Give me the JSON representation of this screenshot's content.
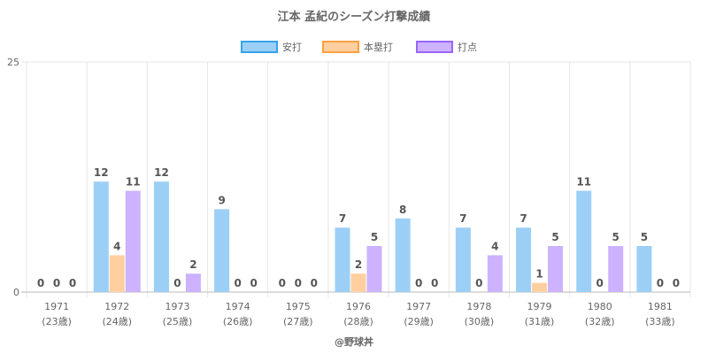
{
  "chart_data": {
    "type": "bar",
    "title": "江本 孟紀のシーズン打撃成績",
    "categories": [
      "1971",
      "1972",
      "1973",
      "1974",
      "1975",
      "1976",
      "1977",
      "1978",
      "1979",
      "1980",
      "1981"
    ],
    "sublabels": [
      "(23歳)",
      "(24歳)",
      "(25歳)",
      "(26歳)",
      "(27歳)",
      "(28歳)",
      "(29歳)",
      "(30歳)",
      "(31歳)",
      "(32歳)",
      "(33歳)"
    ],
    "series": [
      {
        "name": "安打",
        "values": [
          0,
          12,
          12,
          9,
          0,
          7,
          8,
          7,
          7,
          11,
          5
        ],
        "fill": "#9ccff5",
        "stroke": "#36a2eb"
      },
      {
        "name": "本塁打",
        "values": [
          0,
          4,
          0,
          0,
          0,
          2,
          0,
          0,
          1,
          0,
          0
        ],
        "fill": "#ffcf9f",
        "stroke": "#ff9f40"
      },
      {
        "name": "打点",
        "values": [
          0,
          11,
          2,
          0,
          0,
          5,
          0,
          4,
          5,
          5,
          0
        ],
        "fill": "#ccb2ff",
        "stroke": "#9966ff"
      }
    ],
    "ylim": [
      0,
      25
    ],
    "yticks": [
      "0",
      "25"
    ],
    "legend": "top",
    "grid": true
  },
  "credit": "@野球丼"
}
